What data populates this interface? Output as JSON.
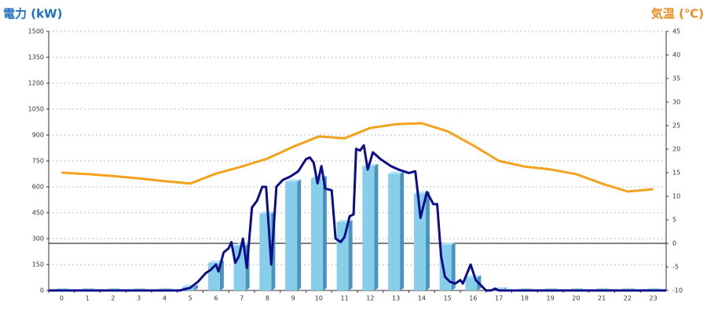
{
  "chart_data": {
    "type": "combo",
    "y_label": "電力 (kW)",
    "y2_label": "気温 (℃)",
    "categories": [
      "0",
      "1",
      "2",
      "3",
      "4",
      "5",
      "6",
      "7",
      "8",
      "9",
      "10",
      "11",
      "12",
      "13",
      "14",
      "15",
      "16",
      "17",
      "18",
      "19",
      "20",
      "21",
      "22",
      "23"
    ],
    "xlim": [
      -0.5,
      23.5
    ],
    "ylim": [
      0,
      1500
    ],
    "yticks": [
      0,
      150,
      300,
      450,
      600,
      750,
      900,
      1050,
      1200,
      1350,
      1500
    ],
    "y2lim": [
      -10,
      45
    ],
    "y2ticks": [
      -10,
      -5,
      0,
      5,
      10,
      15,
      20,
      25,
      30,
      35,
      40,
      45
    ],
    "grid": true,
    "y2_zero_line": true,
    "series": [
      {
        "type": "bar",
        "color": "#87ceeb",
        "values": [
          0,
          0,
          0,
          0,
          0,
          20,
          160,
          260,
          445,
          630,
          650,
          395,
          720,
          675,
          560,
          265,
          75,
          5,
          0,
          0,
          0,
          0,
          0,
          0
        ]
      },
      {
        "type": "line",
        "color": "#0d0d8a",
        "x": [
          -0.5,
          4.6,
          5.0,
          5.3,
          5.6,
          5.8,
          6.0,
          6.1,
          6.3,
          6.5,
          6.6,
          6.75,
          6.9,
          7.05,
          7.2,
          7.4,
          7.6,
          7.8,
          7.95,
          8.15,
          8.35,
          8.6,
          8.9,
          9.2,
          9.5,
          9.65,
          9.8,
          9.95,
          10.1,
          10.25,
          10.5,
          10.65,
          10.85,
          11.0,
          11.2,
          11.35,
          11.45,
          11.6,
          11.75,
          11.9,
          12.1,
          12.4,
          12.8,
          13.1,
          13.5,
          13.75,
          13.85,
          13.95,
          14.2,
          14.45,
          14.6,
          14.75,
          14.9,
          15.1,
          15.3,
          15.5,
          15.6,
          15.9,
          16.1,
          16.3,
          16.5,
          16.7,
          16.85,
          17.0,
          23.5
        ],
        "values": [
          0,
          0,
          15,
          50,
          100,
          120,
          150,
          110,
          220,
          245,
          280,
          160,
          200,
          300,
          130,
          480,
          520,
          600,
          600,
          150,
          600,
          640,
          660,
          690,
          760,
          770,
          740,
          620,
          720,
          590,
          580,
          300,
          280,
          310,
          430,
          440,
          820,
          810,
          840,
          700,
          800,
          760,
          720,
          700,
          680,
          690,
          560,
          420,
          570,
          500,
          500,
          200,
          80,
          50,
          40,
          60,
          40,
          150,
          60,
          30,
          0,
          0,
          10,
          0,
          0
        ]
      },
      {
        "type": "line",
        "axis": "y2",
        "color": "#f5a21b",
        "values": [
          15,
          14.7,
          14.3,
          13.8,
          13.2,
          12.7,
          14.8,
          16.3,
          18,
          20.5,
          22.7,
          22.3,
          24.5,
          25.3,
          25.5,
          23.8,
          20.8,
          17.5,
          16.3,
          15.7,
          14.7,
          12.7,
          11,
          11.5
        ]
      }
    ]
  }
}
